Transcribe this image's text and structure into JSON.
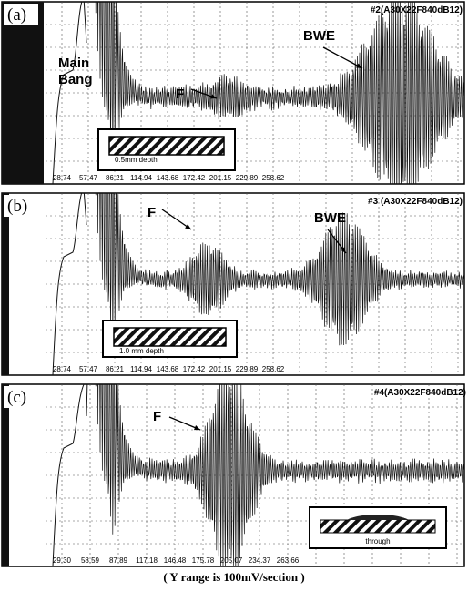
{
  "panels": [
    {
      "label": "(a)",
      "header": "#2(A30X22F840dB12)",
      "annotations": [
        "Main",
        "Bang",
        "F",
        "BWE"
      ],
      "inset_caption": "0.5mm depth",
      "ticks": [
        "28.74",
        "57.47",
        "86.21",
        "114.94",
        "143.68",
        "172.42",
        "201.15",
        "229.89",
        "258.62"
      ]
    },
    {
      "label": "(b)",
      "header": "#3 (A30X22F840dB12)",
      "annotations": [
        "F",
        "BWE"
      ],
      "inset_caption": "1.0 mm depth",
      "ticks": [
        "28.74",
        "57.47",
        "86.21",
        "114.94",
        "143.68",
        "172.42",
        "201.15",
        "229.89",
        "258.62"
      ]
    },
    {
      "label": "(c)",
      "header": "#4(A30X22F840dB12)",
      "annotations": [
        "F"
      ],
      "inset_caption": "through",
      "ticks": [
        "29.30",
        "58.59",
        "87.89",
        "117.18",
        "146.48",
        "175.78",
        "205.07",
        "234.37",
        "263.66"
      ]
    }
  ],
  "caption": "( Y range is 100mV/section )"
}
